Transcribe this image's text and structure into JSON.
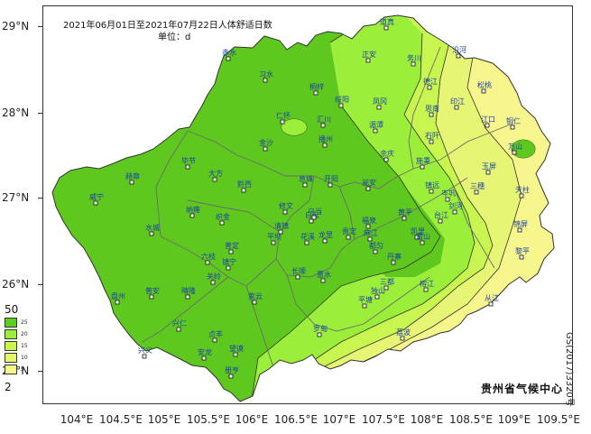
{
  "title": "2021年06月01日至2021年07月22日人体舒适日数",
  "unit": "单位：d",
  "organization": "贵州省气候中心",
  "approval_number": "GS(2017)3320号",
  "lat_labels": [
    "29°N",
    "28°N",
    "27°N",
    "26°N",
    "25°N"
  ],
  "lon_labels": [
    "104°E",
    "104.5°E",
    "105°E",
    "105.5°E",
    "106°E",
    "106.5°E",
    "107°E",
    "107.5°E",
    "108°E",
    "108.5°E",
    "109°E",
    "109.5°E"
  ],
  "legend": {
    "max_label": "50",
    "min_label": "2",
    "items": [
      {
        "label": "25",
        "color": "#5fcf1f"
      },
      {
        "label": "20",
        "color": "#9bef3a"
      },
      {
        "label": "15",
        "color": "#c9f550"
      },
      {
        "label": "10",
        "color": "#e4f76b"
      },
      {
        "label": "5",
        "color": "#f4f78a"
      }
    ]
  },
  "colors": {
    "very_high": "#5ec81f",
    "high": "#9bef3a",
    "medium": "#c9f550",
    "low": "#e6f574",
    "very_low": "#f6f68c",
    "boundary": "#555555",
    "city_text": "#1c3fa8"
  },
  "cities": [
    {
      "name": "道真"
    },
    {
      "name": "赤水"
    },
    {
      "name": "习水"
    },
    {
      "name": "正安"
    },
    {
      "name": "务川"
    },
    {
      "name": "沿河"
    },
    {
      "name": "桐梓"
    },
    {
      "name": "绥阳"
    },
    {
      "name": "凤冈"
    },
    {
      "name": "德江"
    },
    {
      "name": "印江"
    },
    {
      "name": "松桃"
    },
    {
      "name": "仁怀"
    },
    {
      "name": "汇川"
    },
    {
      "name": "湄潭"
    },
    {
      "name": "思南"
    },
    {
      "name": "江口"
    },
    {
      "name": "铜仁"
    },
    {
      "name": "金沙"
    },
    {
      "name": "播州"
    },
    {
      "name": "余庆"
    },
    {
      "name": "石阡"
    },
    {
      "name": "万山"
    },
    {
      "name": "毕节"
    },
    {
      "name": "大方"
    },
    {
      "name": "黔西"
    },
    {
      "name": "息烽"
    },
    {
      "name": "开阳"
    },
    {
      "name": "瓮安"
    },
    {
      "name": "施秉"
    },
    {
      "name": "镇远"
    },
    {
      "name": "三穗"
    },
    {
      "name": "玉屏"
    },
    {
      "name": "赫章"
    },
    {
      "name": "威宁"
    },
    {
      "name": "修文"
    },
    {
      "name": "岑巩"
    },
    {
      "name": "天柱"
    },
    {
      "name": "织金"
    },
    {
      "name": "纳雍"
    },
    {
      "name": "清镇"
    },
    {
      "name": "白云"
    },
    {
      "name": "乌当"
    },
    {
      "name": "福泉"
    },
    {
      "name": "黄平"
    },
    {
      "name": "凯里"
    },
    {
      "name": "台江"
    },
    {
      "name": "剑河"
    },
    {
      "name": "锦屏"
    },
    {
      "name": "水城"
    },
    {
      "name": "六枝"
    },
    {
      "name": "普定"
    },
    {
      "name": "平坝"
    },
    {
      "name": "花溪"
    },
    {
      "name": "龙里"
    },
    {
      "name": "贵定"
    },
    {
      "name": "麻江"
    },
    {
      "name": "雷山"
    },
    {
      "name": "黎平"
    },
    {
      "name": "镇宁"
    },
    {
      "name": "关岭"
    },
    {
      "name": "长顺"
    },
    {
      "name": "惠水"
    },
    {
      "name": "都匀"
    },
    {
      "name": "丹寨"
    },
    {
      "name": "榕江"
    },
    {
      "name": "盘州"
    },
    {
      "name": "普安"
    },
    {
      "name": "晴隆"
    },
    {
      "name": "紫云"
    },
    {
      "name": "独山"
    },
    {
      "name": "三都"
    },
    {
      "name": "从江"
    },
    {
      "name": "兴仁"
    },
    {
      "name": "贞丰"
    },
    {
      "name": "望谟"
    },
    {
      "name": "罗甸"
    },
    {
      "name": "平塘"
    },
    {
      "name": "荔波"
    },
    {
      "name": "兴义"
    },
    {
      "name": "安龙"
    },
    {
      "name": "册亨"
    }
  ]
}
